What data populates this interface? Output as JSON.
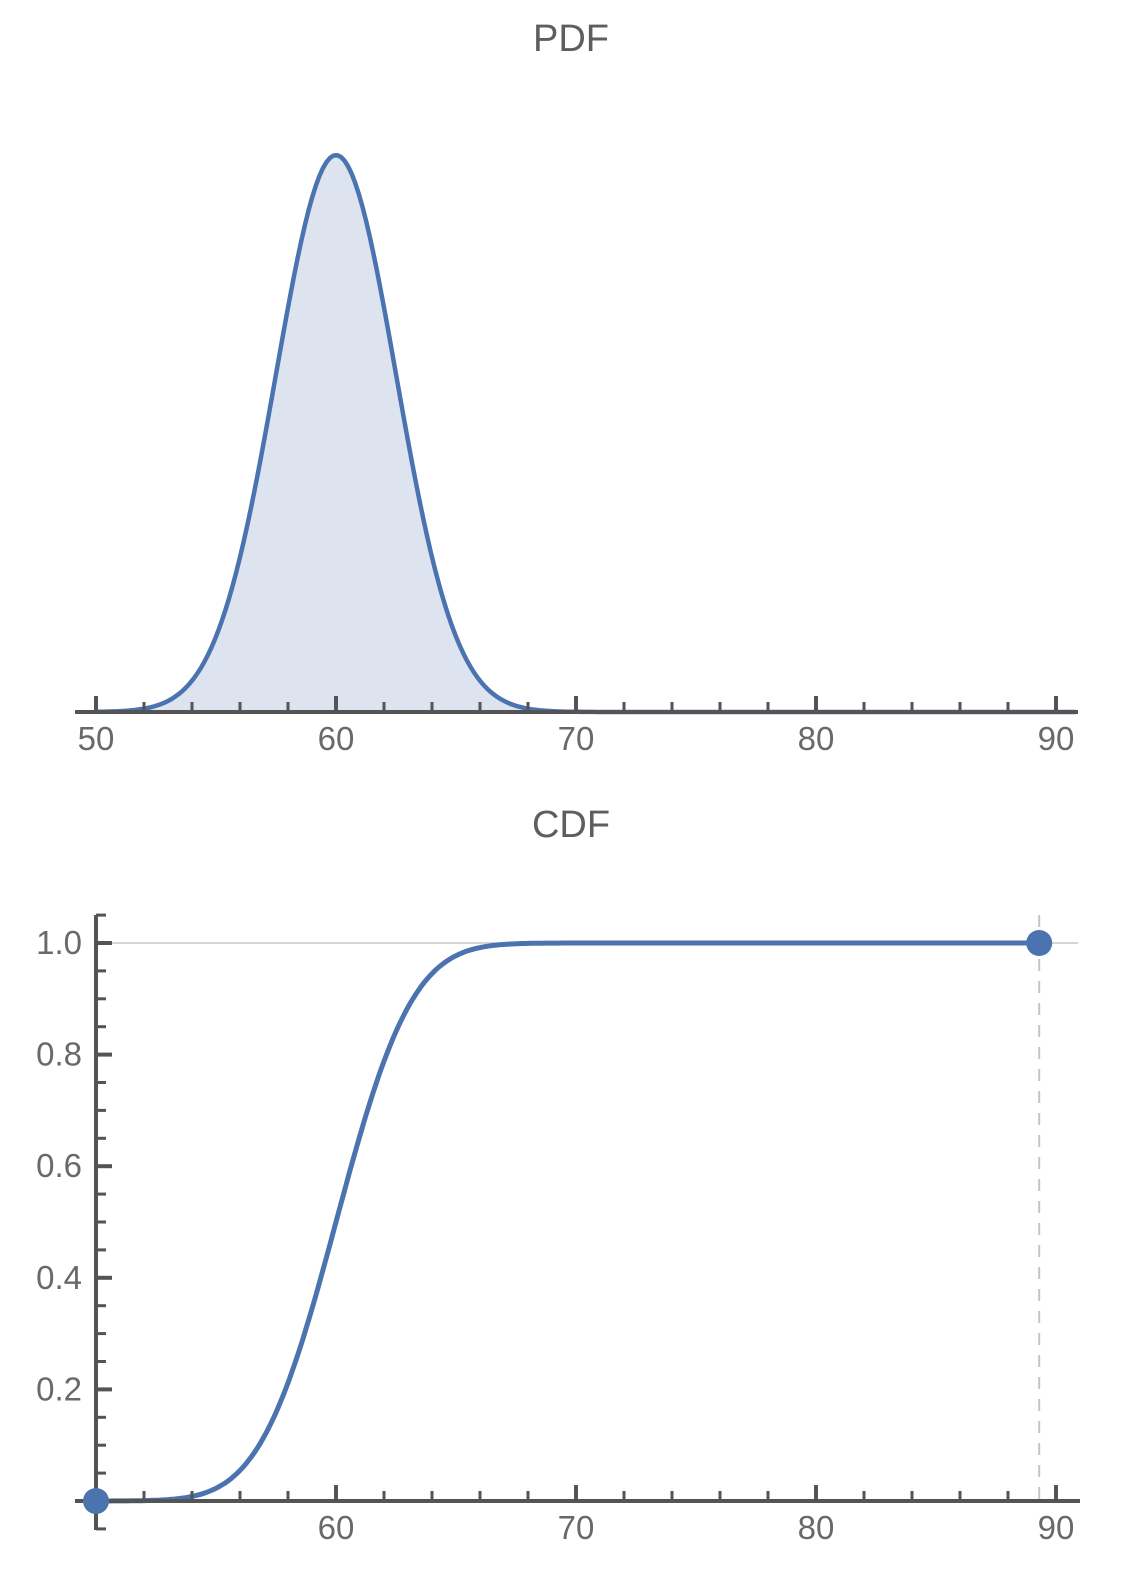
{
  "chart_data": [
    {
      "type": "area",
      "title": "PDF",
      "x_axis": {
        "min": 50,
        "max": 90.9,
        "major_ticks": [
          50,
          60,
          70,
          80,
          90
        ],
        "tick_labels": [
          "50",
          "60",
          "70",
          "80",
          "90"
        ],
        "minor_tick_step": 2
      },
      "y_axis": {
        "shown": false,
        "min": 0,
        "max": 0.17
      },
      "series": [
        {
          "name": "normal-pdf",
          "distribution": "Normal",
          "mean": 60,
          "sigma": 2.5,
          "peak_density": 0.1596,
          "x_start": 50,
          "x_end": 90.9,
          "sample_points": {
            "x": [
              50,
              52,
              54,
              56,
              58,
              60,
              62,
              64,
              66,
              68,
              70,
              80,
              90
            ],
            "y": [
              5e-05,
              0.00096,
              0.00899,
              0.04437,
              0.11588,
              0.15958,
              0.11588,
              0.04437,
              0.00899,
              0.00096,
              5e-05,
              0.0,
              0.0
            ]
          }
        }
      ],
      "colors": {
        "line": "#4b73af",
        "fill": "#dde4f0",
        "axis": "#545454",
        "tick_labels": "#696969",
        "title": "#5e5e5e"
      }
    },
    {
      "type": "line",
      "title": "CDF",
      "x_axis": {
        "min": 50,
        "max": 91,
        "major_ticks": [
          60,
          70,
          80,
          90
        ],
        "tick_labels": [
          "60",
          "70",
          "80",
          "90"
        ],
        "minor_tick_step": 2
      },
      "y_axis": {
        "shown": true,
        "min": 0,
        "max": 1.05,
        "major_ticks": [
          0.2,
          0.4,
          0.6,
          0.8,
          1.0
        ],
        "tick_labels": [
          "0.2",
          "0.4",
          "0.6",
          "0.8",
          "1.0"
        ],
        "minor_tick_step": 0.05
      },
      "series": [
        {
          "name": "normal-cdf",
          "distribution": "Normal",
          "mean": 60,
          "sigma": 2.5,
          "x_start": 50,
          "x_end": 89.3,
          "sample_points": {
            "x": [
              50,
              52,
              54,
              56,
              58,
              60,
              62,
              64,
              66,
              68,
              70,
              80,
              89.3
            ],
            "y": [
              3e-05,
              0.00069,
              0.0082,
              0.0548,
              0.21186,
              0.5,
              0.78814,
              0.9452,
              0.9918,
              0.99931,
              0.99997,
              1.0,
              1.0
            ]
          }
        }
      ],
      "points": [
        {
          "x": 50,
          "y": 0
        },
        {
          "x": 89.3,
          "y": 1
        }
      ],
      "gridline_y": 1.0,
      "dashed_line_x": 89.3,
      "colors": {
        "line": "#4b73af",
        "axis": "#545454",
        "gridline": "#c9c9c9",
        "dashed_line": "#c5c5c5",
        "tick_labels": "#696969",
        "title": "#5e5e5e"
      }
    }
  ]
}
